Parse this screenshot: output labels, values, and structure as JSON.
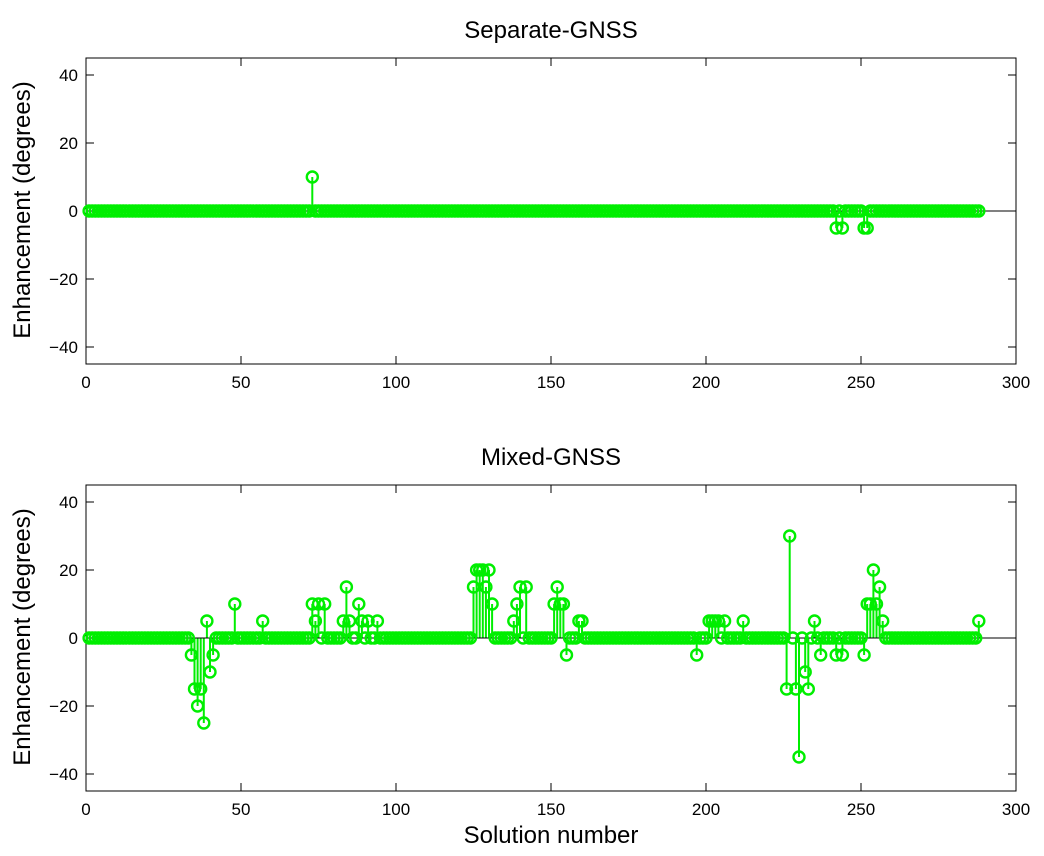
{
  "colors": {
    "series": "#00ee00",
    "axes": "#000000",
    "background": "#ffffff"
  },
  "chart_data": [
    {
      "type": "stem",
      "title": "Separate-GNSS",
      "xlabel": "",
      "ylabel": "Enhancement (degrees)",
      "xlim": [
        0,
        300
      ],
      "ylim": [
        -45,
        45
      ],
      "xticks": [
        0,
        50,
        100,
        150,
        200,
        250,
        300
      ],
      "yticks": [
        -40,
        -20,
        0,
        20,
        40
      ],
      "grid": false,
      "x_range": [
        1,
        288
      ],
      "default_value": 0,
      "points": [
        {
          "x": 73,
          "y": 10
        },
        {
          "x": 242,
          "y": -5
        },
        {
          "x": 244,
          "y": -5
        },
        {
          "x": 251,
          "y": -5
        },
        {
          "x": 252,
          "y": -5
        }
      ]
    },
    {
      "type": "stem",
      "title": "Mixed-GNSS",
      "xlabel": "Solution number",
      "ylabel": "Enhancement (degrees)",
      "xlim": [
        0,
        300
      ],
      "ylim": [
        -45,
        45
      ],
      "xticks": [
        0,
        50,
        100,
        150,
        200,
        250,
        300
      ],
      "yticks": [
        -40,
        -20,
        0,
        20,
        40
      ],
      "grid": false,
      "x_range": [
        1,
        288
      ],
      "default_value": 0,
      "points": [
        {
          "x": 34,
          "y": -5
        },
        {
          "x": 35,
          "y": -15
        },
        {
          "x": 36,
          "y": -20
        },
        {
          "x": 37,
          "y": -15
        },
        {
          "x": 38,
          "y": -25
        },
        {
          "x": 39,
          "y": 5
        },
        {
          "x": 40,
          "y": -10
        },
        {
          "x": 41,
          "y": -5
        },
        {
          "x": 48,
          "y": 10
        },
        {
          "x": 57,
          "y": 5
        },
        {
          "x": 73,
          "y": 10
        },
        {
          "x": 74,
          "y": 5
        },
        {
          "x": 75,
          "y": 10
        },
        {
          "x": 77,
          "y": 10
        },
        {
          "x": 83,
          "y": 5
        },
        {
          "x": 84,
          "y": 15
        },
        {
          "x": 85,
          "y": 5
        },
        {
          "x": 88,
          "y": 10
        },
        {
          "x": 89,
          "y": 5
        },
        {
          "x": 91,
          "y": 5
        },
        {
          "x": 94,
          "y": 5
        },
        {
          "x": 125,
          "y": 15
        },
        {
          "x": 126,
          "y": 20
        },
        {
          "x": 127,
          "y": 20
        },
        {
          "x": 128,
          "y": 20
        },
        {
          "x": 129,
          "y": 15
        },
        {
          "x": 130,
          "y": 20
        },
        {
          "x": 131,
          "y": 10
        },
        {
          "x": 138,
          "y": 5
        },
        {
          "x": 139,
          "y": 10
        },
        {
          "x": 140,
          "y": 15
        },
        {
          "x": 142,
          "y": 15
        },
        {
          "x": 151,
          "y": 10
        },
        {
          "x": 152,
          "y": 15
        },
        {
          "x": 153,
          "y": 10
        },
        {
          "x": 154,
          "y": 10
        },
        {
          "x": 155,
          "y": -5
        },
        {
          "x": 159,
          "y": 5
        },
        {
          "x": 160,
          "y": 5
        },
        {
          "x": 197,
          "y": -5
        },
        {
          "x": 201,
          "y": 5
        },
        {
          "x": 202,
          "y": 5
        },
        {
          "x": 203,
          "y": 5
        },
        {
          "x": 204,
          "y": 5
        },
        {
          "x": 206,
          "y": 5
        },
        {
          "x": 212,
          "y": 5
        },
        {
          "x": 226,
          "y": -15
        },
        {
          "x": 227,
          "y": 30
        },
        {
          "x": 229,
          "y": -15
        },
        {
          "x": 230,
          "y": -35
        },
        {
          "x": 231,
          "y": 0
        },
        {
          "x": 232,
          "y": -10
        },
        {
          "x": 233,
          "y": -15
        },
        {
          "x": 235,
          "y": 5
        },
        {
          "x": 237,
          "y": -5
        },
        {
          "x": 242,
          "y": -5
        },
        {
          "x": 244,
          "y": -5
        },
        {
          "x": 251,
          "y": -5
        },
        {
          "x": 252,
          "y": 10
        },
        {
          "x": 253,
          "y": 10
        },
        {
          "x": 254,
          "y": 20
        },
        {
          "x": 255,
          "y": 10
        },
        {
          "x": 256,
          "y": 15
        },
        {
          "x": 257,
          "y": 5
        },
        {
          "x": 288,
          "y": 5
        }
      ]
    }
  ]
}
